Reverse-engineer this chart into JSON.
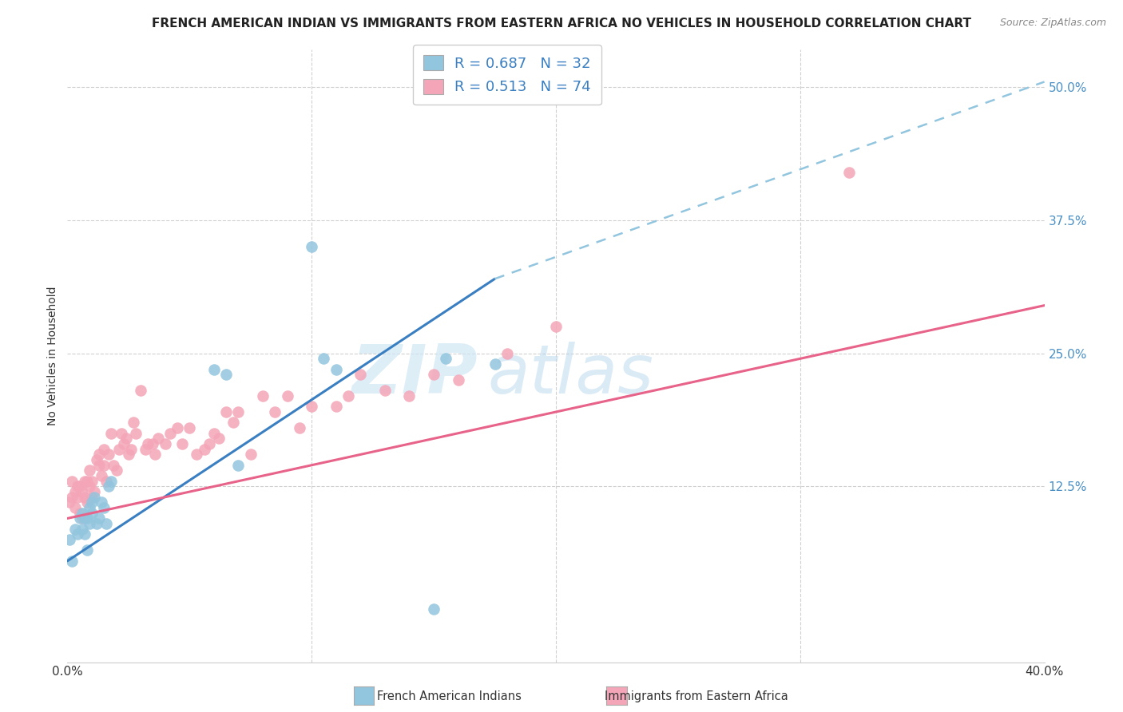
{
  "title": "FRENCH AMERICAN INDIAN VS IMMIGRANTS FROM EASTERN AFRICA NO VEHICLES IN HOUSEHOLD CORRELATION CHART",
  "source": "Source: ZipAtlas.com",
  "ylabel": "No Vehicles in Household",
  "ytick_labels": [
    "12.5%",
    "25.0%",
    "37.5%",
    "50.0%"
  ],
  "ytick_values": [
    0.125,
    0.25,
    0.375,
    0.5
  ],
  "xlim": [
    0.0,
    0.4
  ],
  "ylim": [
    -0.04,
    0.535
  ],
  "legend_blue_r": "0.687",
  "legend_blue_n": "32",
  "legend_pink_r": "0.513",
  "legend_pink_n": "74",
  "legend_label_blue": "French American Indians",
  "legend_label_pink": "Immigrants from Eastern Africa",
  "color_blue": "#92c5de",
  "color_pink": "#f4a6b8",
  "color_blue_line": "#3a7fc1",
  "color_pink_line": "#e8638a",
  "color_dashed_line": "#92c5de",
  "watermark_zip": "ZIP",
  "watermark_atlas": "atlas",
  "blue_scatter_x": [
    0.001,
    0.002,
    0.003,
    0.004,
    0.005,
    0.006,
    0.006,
    0.007,
    0.007,
    0.008,
    0.008,
    0.009,
    0.009,
    0.01,
    0.01,
    0.011,
    0.012,
    0.013,
    0.014,
    0.015,
    0.016,
    0.017,
    0.018,
    0.06,
    0.065,
    0.07,
    0.1,
    0.105,
    0.11,
    0.15,
    0.155,
    0.175
  ],
  "blue_scatter_y": [
    0.075,
    0.055,
    0.085,
    0.08,
    0.095,
    0.085,
    0.1,
    0.08,
    0.095,
    0.065,
    0.095,
    0.09,
    0.105,
    0.1,
    0.11,
    0.115,
    0.09,
    0.095,
    0.11,
    0.105,
    0.09,
    0.125,
    0.13,
    0.235,
    0.23,
    0.145,
    0.35,
    0.245,
    0.235,
    0.01,
    0.245,
    0.24
  ],
  "pink_scatter_x": [
    0.001,
    0.002,
    0.002,
    0.003,
    0.003,
    0.004,
    0.004,
    0.005,
    0.005,
    0.006,
    0.006,
    0.007,
    0.007,
    0.008,
    0.008,
    0.009,
    0.009,
    0.01,
    0.01,
    0.011,
    0.012,
    0.013,
    0.013,
    0.014,
    0.015,
    0.015,
    0.016,
    0.017,
    0.018,
    0.019,
    0.02,
    0.021,
    0.022,
    0.023,
    0.024,
    0.025,
    0.026,
    0.027,
    0.028,
    0.03,
    0.032,
    0.033,
    0.035,
    0.036,
    0.037,
    0.04,
    0.042,
    0.045,
    0.047,
    0.05,
    0.053,
    0.056,
    0.058,
    0.06,
    0.062,
    0.065,
    0.068,
    0.07,
    0.075,
    0.08,
    0.085,
    0.09,
    0.095,
    0.1,
    0.11,
    0.115,
    0.12,
    0.13,
    0.14,
    0.15,
    0.16,
    0.18,
    0.2,
    0.32
  ],
  "pink_scatter_y": [
    0.11,
    0.13,
    0.115,
    0.12,
    0.105,
    0.115,
    0.125,
    0.1,
    0.125,
    0.095,
    0.12,
    0.13,
    0.115,
    0.13,
    0.11,
    0.125,
    0.14,
    0.13,
    0.115,
    0.12,
    0.15,
    0.145,
    0.155,
    0.135,
    0.145,
    0.16,
    0.13,
    0.155,
    0.175,
    0.145,
    0.14,
    0.16,
    0.175,
    0.165,
    0.17,
    0.155,
    0.16,
    0.185,
    0.175,
    0.215,
    0.16,
    0.165,
    0.165,
    0.155,
    0.17,
    0.165,
    0.175,
    0.18,
    0.165,
    0.18,
    0.155,
    0.16,
    0.165,
    0.175,
    0.17,
    0.195,
    0.185,
    0.195,
    0.155,
    0.21,
    0.195,
    0.21,
    0.18,
    0.2,
    0.2,
    0.21,
    0.23,
    0.215,
    0.21,
    0.23,
    0.225,
    0.25,
    0.275,
    0.42
  ],
  "blue_line_x": [
    0.0,
    0.175
  ],
  "blue_line_y": [
    0.055,
    0.32
  ],
  "pink_line_x": [
    0.0,
    0.4
  ],
  "pink_line_y": [
    0.095,
    0.295
  ],
  "dashed_line_x": [
    0.175,
    0.4
  ],
  "dashed_line_y": [
    0.32,
    0.505
  ],
  "bg_color": "#ffffff",
  "grid_color": "#d0d0d0"
}
